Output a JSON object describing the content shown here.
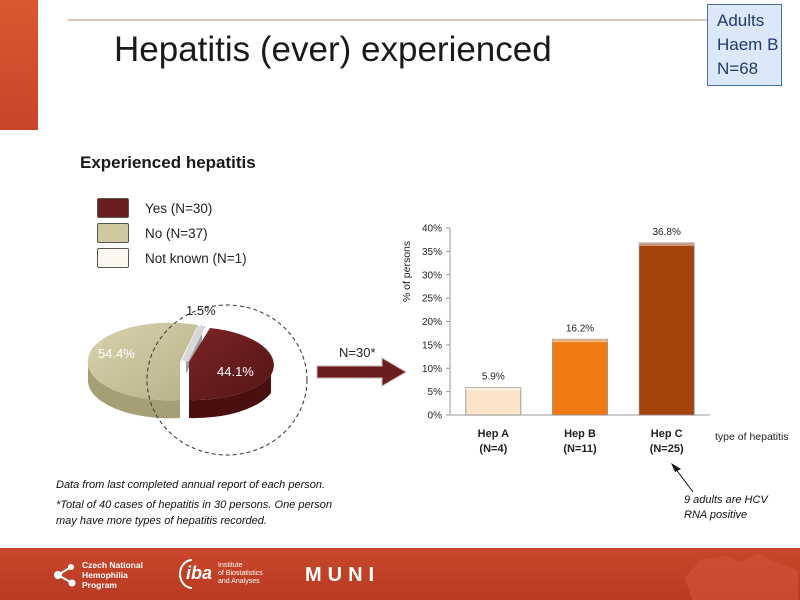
{
  "header": {
    "title": "Hepatitis (ever) experienced",
    "info_box": [
      "Adults",
      "Haem B",
      "N=68"
    ]
  },
  "pie": {
    "section_title": "Experienced hepatitis",
    "legend": [
      {
        "label": "Yes (N=30)",
        "color": "#6b1e1e"
      },
      {
        "label": "No (N=37)",
        "color": "#cfc8a0"
      },
      {
        "label": "Not known (N=1)",
        "color": "#fbf8ee"
      }
    ],
    "slices": [
      {
        "name": "Yes (N=30)",
        "value": 44.1,
        "label": "44.1%"
      },
      {
        "name": "No (N=37)",
        "value": 54.4,
        "label": "54.4%"
      },
      {
        "name": "Not known (N=1)",
        "value": 1.5,
        "label": "1.5%"
      }
    ]
  },
  "arrow_label": "N=30*",
  "chart_data": {
    "type": "bar",
    "categories": [
      "Hep A",
      "Hep B",
      "Hep C"
    ],
    "category_sublabels": [
      "(N=4)",
      "(N=11)",
      "(N=25)"
    ],
    "values": [
      5.9,
      16.2,
      36.8
    ],
    "data_labels": [
      "5.9%",
      "16.2%",
      "36.8%"
    ],
    "colors": [
      "#fde4c8",
      "#f07a12",
      "#a5450d"
    ],
    "ylabel": "% of persons",
    "xlabel": "type of hepatitis",
    "ylim": [
      0,
      40
    ],
    "yticks": [
      "0%",
      "5%",
      "10%",
      "15%",
      "20%",
      "25%",
      "30%",
      "35%",
      "40%"
    ],
    "grid": false
  },
  "notes": {
    "data_source": "Data from last completed annual report of each person.",
    "footnote_line1": "*Total of 40 cases of hepatitis in 30 persons. One person",
    "footnote_line2": "may have more types of hepatitis recorded.",
    "hcv": "9 adults are HCV RNA positive"
  },
  "footer": {
    "logo1": [
      "Czech National",
      "Hemophilia",
      "Program"
    ],
    "logo2_main": "iba",
    "logo2_sub": [
      "Institute",
      "of Biostatistics",
      "and Analyses"
    ],
    "logo3": "MUNI"
  }
}
